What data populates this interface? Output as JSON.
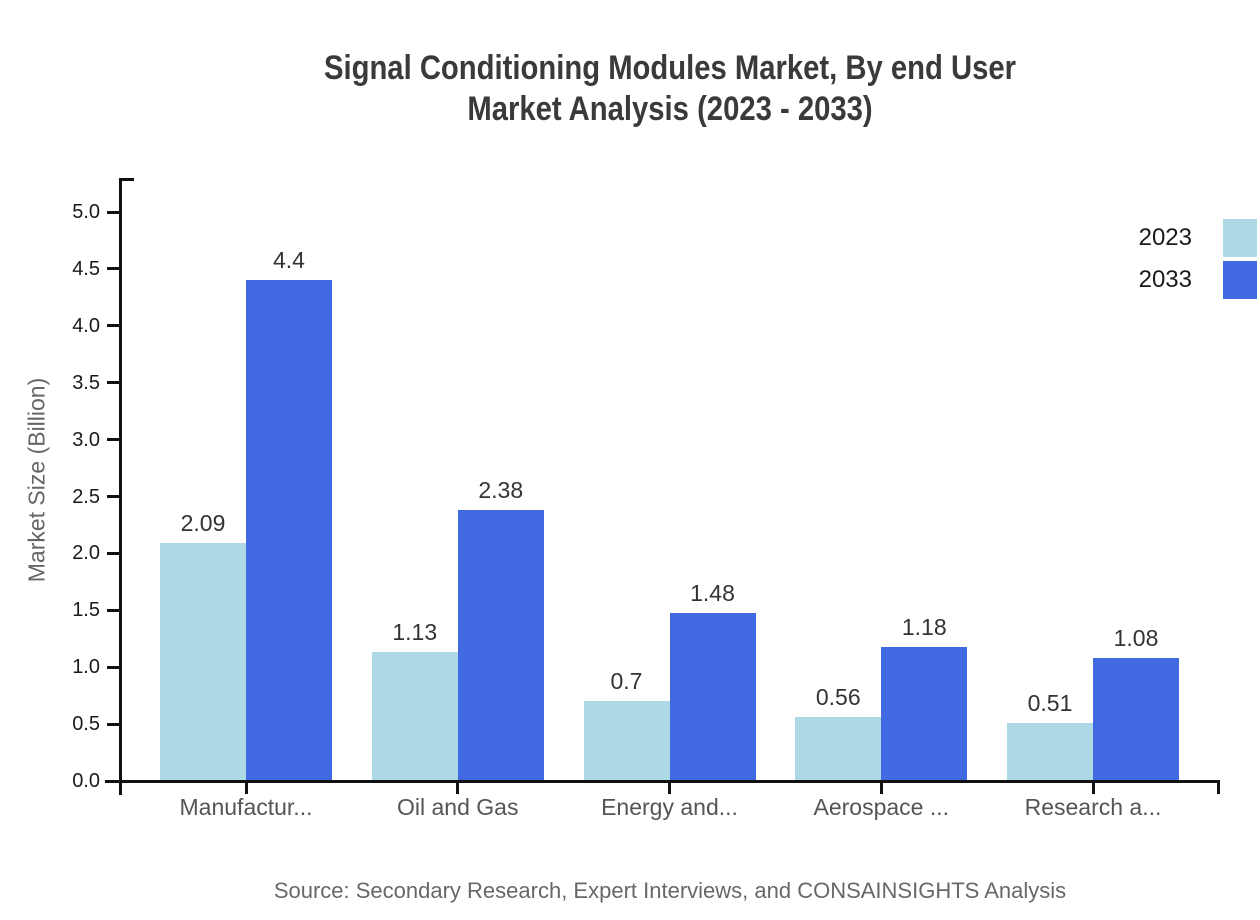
{
  "chart_data": {
    "type": "bar",
    "title_line1": "Signal Conditioning Modules Market, By end User",
    "title_line2": "Market Analysis (2023 - 2033)",
    "ylabel": "Market Size (Billion)",
    "xlabel": "",
    "categories": [
      "Manufactur...",
      "Oil and Gas",
      "Energy and...",
      "Aerospace ...",
      "Research a..."
    ],
    "series": [
      {
        "name": "2023",
        "color": "#ADD8E6",
        "values": [
          2.09,
          1.13,
          0.7,
          0.56,
          0.51
        ]
      },
      {
        "name": "2033",
        "color": "#4169E1",
        "values": [
          4.4,
          2.38,
          1.48,
          1.18,
          1.08
        ]
      }
    ],
    "yticks": [
      0.0,
      0.5,
      1.0,
      1.5,
      2.0,
      2.5,
      3.0,
      3.5,
      4.0,
      4.5,
      5.0
    ],
    "ylim": [
      0,
      5.3
    ],
    "grid": false,
    "legend_position": "top-right",
    "value_labels_shown": true
  },
  "source_note": "Source: Secondary Research, Expert Interviews, and CONSAINSIGHTS Analysis",
  "colors": {
    "bar_2023": "#ADD8E6",
    "bar_2033": "#4169E1",
    "title_text": "#3A3A3A",
    "axis_line": "#111111",
    "tick_label": "#1A1A1A",
    "category_label": "#555555",
    "axis_title": "#666666",
    "value_label": "#333333",
    "source_text": "#686868",
    "background": "#FFFFFF"
  }
}
